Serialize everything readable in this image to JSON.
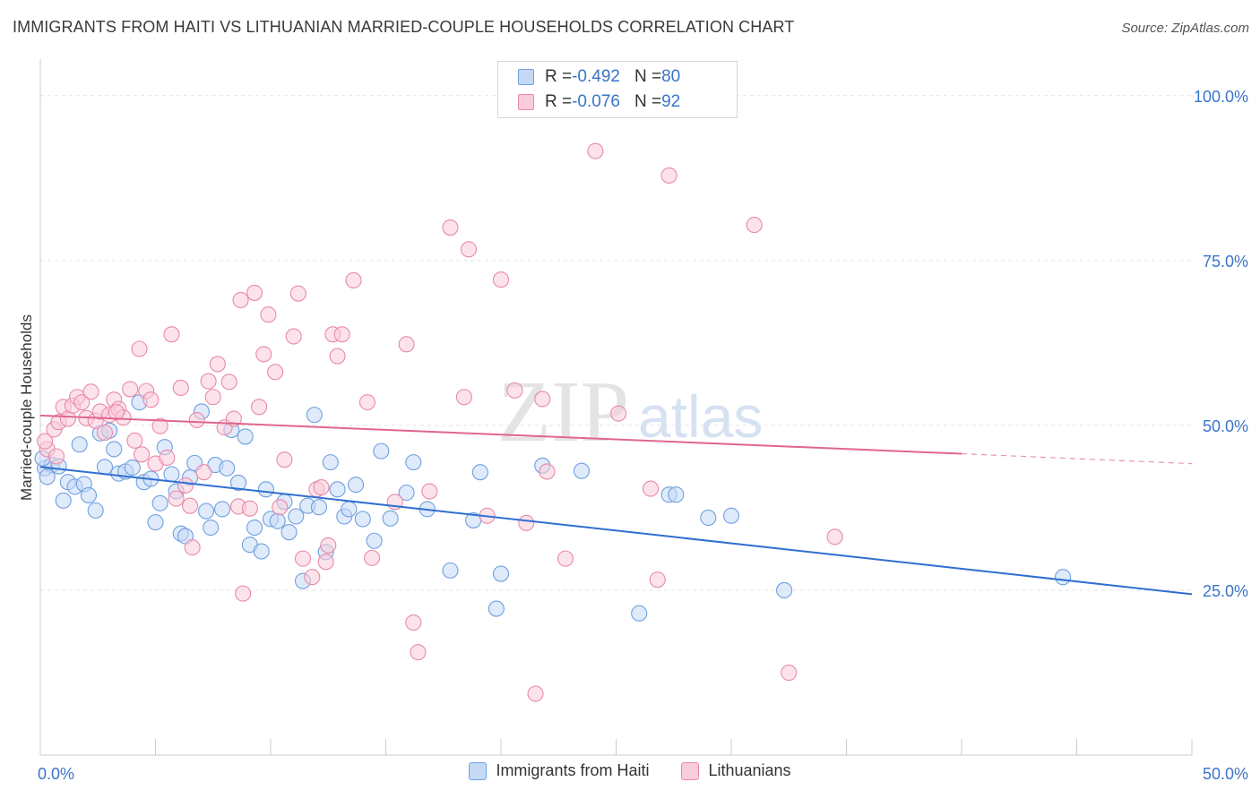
{
  "title": "IMMIGRANTS FROM HAITI VS LITHUANIAN MARRIED-COUPLE HOUSEHOLDS CORRELATION CHART",
  "source": "Source: ZipAtlas.com",
  "watermark": {
    "zip": "ZIP",
    "atlas": "atlas"
  },
  "stats": [
    {
      "r_label": "R = ",
      "r_value": "-0.492",
      "n_label": "N = ",
      "n_value": "80",
      "color": "#6fa0e0",
      "fill": "#c5d9f5"
    },
    {
      "r_label": "R = ",
      "r_value": "-0.076",
      "n_label": "N = ",
      "n_value": "92",
      "color": "#e88aa8",
      "fill": "#f9ccd9"
    }
  ],
  "legend": [
    {
      "label": "Immigrants from Haiti",
      "color": "#6fa0e0",
      "fill": "#c5d9f5"
    },
    {
      "label": "Lithuanians",
      "color": "#e88aa8",
      "fill": "#f9ccd9"
    }
  ],
  "chart_data": {
    "type": "scatter",
    "ylabel": "Married-couple Households",
    "xlim": [
      0,
      50
    ],
    "ylim": [
      0,
      105
    ],
    "x_tick_labels": [
      {
        "value": 0,
        "label": "0.0%"
      },
      {
        "value": 50,
        "label": "50.0%"
      }
    ],
    "y_tick_labels": [
      {
        "value": 25,
        "label": "25.0%"
      },
      {
        "value": 50,
        "label": "50.0%"
      },
      {
        "value": 75,
        "label": "75.0%"
      },
      {
        "value": 100,
        "label": "100.0%"
      }
    ],
    "grid": true,
    "series": [
      {
        "name": "Immigrants from Haiti",
        "color": "#6fa0e0",
        "fill": "#c5d9f5",
        "line_color": "#2f6fd0",
        "trend": {
          "x0": 0,
          "y0": 43.7,
          "x1": 50,
          "y1": 24.4
        },
        "points": [
          [
            0.2,
            43.5
          ],
          [
            0.5,
            44
          ],
          [
            0.8,
            43.8
          ],
          [
            1.0,
            38.6
          ],
          [
            1.2,
            41.4
          ],
          [
            1.5,
            40.7
          ],
          [
            1.7,
            47.1
          ],
          [
            1.9,
            41.1
          ],
          [
            2.1,
            39.4
          ],
          [
            2.4,
            37.1
          ],
          [
            2.6,
            48.8
          ],
          [
            2.8,
            43.7
          ],
          [
            3.0,
            49.2
          ],
          [
            3.2,
            46.4
          ],
          [
            3.4,
            42.7
          ],
          [
            3.7,
            43
          ],
          [
            4.0,
            43.6
          ],
          [
            4.3,
            53.5
          ],
          [
            4.5,
            41.4
          ],
          [
            4.8,
            41.9
          ],
          [
            5.0,
            35.3
          ],
          [
            5.2,
            38.2
          ],
          [
            5.4,
            46.7
          ],
          [
            5.7,
            42.6
          ],
          [
            5.9,
            40
          ],
          [
            6.1,
            33.6
          ],
          [
            6.3,
            33.2
          ],
          [
            6.5,
            42.1
          ],
          [
            6.7,
            44.3
          ],
          [
            7.0,
            52.1
          ],
          [
            7.2,
            37
          ],
          [
            7.4,
            34.5
          ],
          [
            7.6,
            44
          ],
          [
            7.9,
            37.3
          ],
          [
            8.1,
            43.5
          ],
          [
            8.3,
            49.3
          ],
          [
            8.6,
            41.3
          ],
          [
            8.9,
            48.3
          ],
          [
            9.1,
            31.9
          ],
          [
            9.3,
            34.5
          ],
          [
            9.6,
            30.9
          ],
          [
            9.8,
            40.3
          ],
          [
            10.0,
            35.8
          ],
          [
            10.3,
            35.5
          ],
          [
            10.6,
            38.4
          ],
          [
            10.8,
            33.8
          ],
          [
            11.1,
            36.2
          ],
          [
            11.4,
            26.4
          ],
          [
            11.6,
            37.8
          ],
          [
            11.9,
            51.6
          ],
          [
            12.1,
            37.6
          ],
          [
            12.4,
            30.8
          ],
          [
            12.6,
            44.4
          ],
          [
            12.9,
            40.3
          ],
          [
            13.2,
            36.2
          ],
          [
            13.4,
            37.3
          ],
          [
            13.7,
            41
          ],
          [
            14.0,
            35.8
          ],
          [
            14.5,
            32.5
          ],
          [
            14.8,
            46.1
          ],
          [
            15.2,
            35.9
          ],
          [
            15.9,
            39.8
          ],
          [
            16.2,
            44.4
          ],
          [
            16.8,
            37.3
          ],
          [
            17.8,
            28
          ],
          [
            18.8,
            35.6
          ],
          [
            19.1,
            42.9
          ],
          [
            20.0,
            27.5
          ],
          [
            19.8,
            22.2
          ],
          [
            21.8,
            43.9
          ],
          [
            23.5,
            43.1
          ],
          [
            26.0,
            21.5
          ],
          [
            27.3,
            39.5
          ],
          [
            27.6,
            39.5
          ],
          [
            29.0,
            36
          ],
          [
            30.0,
            36.3
          ],
          [
            32.3,
            25
          ],
          [
            44.4,
            27
          ],
          [
            0.1,
            45
          ],
          [
            0.3,
            42.2
          ]
        ]
      },
      {
        "name": "Lithuanians",
        "color": "#e88aa8",
        "fill": "#f9ccd9",
        "line_color": "#e0668f",
        "trend": {
          "x0": 0,
          "y0": 51.5,
          "x1": 40,
          "y1": 45.7
        },
        "trend_ext": {
          "x0": 40,
          "y0": 45.7,
          "x1": 50,
          "y1": 44.2
        },
        "points": [
          [
            0.3,
            46.4
          ],
          [
            0.6,
            49.4
          ],
          [
            0.8,
            50.5
          ],
          [
            1.0,
            52.8
          ],
          [
            1.2,
            51
          ],
          [
            1.4,
            53
          ],
          [
            1.6,
            54.3
          ],
          [
            1.8,
            53.5
          ],
          [
            2.0,
            51.1
          ],
          [
            2.2,
            55.1
          ],
          [
            2.4,
            50.7
          ],
          [
            2.6,
            52.1
          ],
          [
            2.8,
            48.9
          ],
          [
            3.0,
            51.6
          ],
          [
            3.2,
            53.9
          ],
          [
            3.4,
            52.5
          ],
          [
            3.6,
            51.2
          ],
          [
            3.9,
            55.5
          ],
          [
            4.1,
            47.7
          ],
          [
            4.3,
            61.6
          ],
          [
            4.6,
            55.2
          ],
          [
            4.8,
            53.9
          ],
          [
            5.0,
            44.2
          ],
          [
            5.2,
            49.9
          ],
          [
            5.5,
            45.1
          ],
          [
            5.7,
            63.8
          ],
          [
            5.9,
            38.9
          ],
          [
            6.1,
            55.7
          ],
          [
            6.3,
            40.9
          ],
          [
            6.5,
            37.8
          ],
          [
            6.6,
            31.5
          ],
          [
            6.8,
            50.8
          ],
          [
            7.1,
            42.9
          ],
          [
            7.3,
            56.7
          ],
          [
            7.5,
            54.3
          ],
          [
            7.7,
            59.3
          ],
          [
            8.0,
            49.7
          ],
          [
            8.2,
            56.6
          ],
          [
            8.4,
            51
          ],
          [
            8.6,
            37.7
          ],
          [
            8.8,
            24.5
          ],
          [
            8.7,
            69
          ],
          [
            9.1,
            37.4
          ],
          [
            9.3,
            70.1
          ],
          [
            9.5,
            52.8
          ],
          [
            9.7,
            60.8
          ],
          [
            9.9,
            66.8
          ],
          [
            10.2,
            58.1
          ],
          [
            10.4,
            37.6
          ],
          [
            10.6,
            44.8
          ],
          [
            11.0,
            63.5
          ],
          [
            11.2,
            70
          ],
          [
            11.4,
            29.8
          ],
          [
            11.8,
            27
          ],
          [
            12.0,
            40.3
          ],
          [
            12.2,
            40.6
          ],
          [
            12.4,
            29.3
          ],
          [
            12.5,
            31.8
          ],
          [
            12.7,
            63.8
          ],
          [
            12.9,
            60.5
          ],
          [
            13.1,
            63.8
          ],
          [
            13.6,
            72
          ],
          [
            14.2,
            53.5
          ],
          [
            14.4,
            29.9
          ],
          [
            15.4,
            38.4
          ],
          [
            15.9,
            62.3
          ],
          [
            16.2,
            20.1
          ],
          [
            16.4,
            15.6
          ],
          [
            16.9,
            40
          ],
          [
            17.8,
            80
          ],
          [
            18.4,
            54.3
          ],
          [
            18.6,
            76.7
          ],
          [
            19.4,
            36.3
          ],
          [
            20.0,
            72.1
          ],
          [
            20.6,
            55.3
          ],
          [
            21.1,
            35.2
          ],
          [
            21.5,
            9.3
          ],
          [
            21.8,
            54
          ],
          [
            22.0,
            43
          ],
          [
            22.8,
            29.8
          ],
          [
            24.1,
            91.6
          ],
          [
            25.1,
            51.8
          ],
          [
            26.5,
            40.4
          ],
          [
            26.8,
            26.6
          ],
          [
            27.3,
            87.9
          ],
          [
            31.0,
            80.4
          ],
          [
            32.5,
            12.5
          ],
          [
            34.5,
            33.1
          ],
          [
            0.2,
            47.6
          ],
          [
            0.7,
            45.3
          ],
          [
            3.3,
            52
          ],
          [
            4.4,
            45.6
          ]
        ]
      }
    ]
  }
}
